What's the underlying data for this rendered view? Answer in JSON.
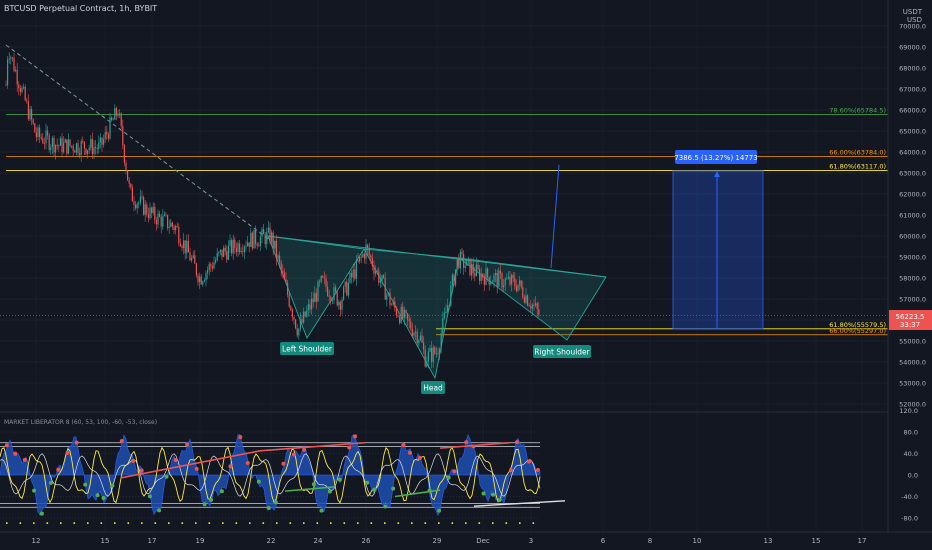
{
  "header": {
    "title": "BTCUSD Perpetual Contract, 1h, BYBIT"
  },
  "indicator": {
    "title": "MARKET LIBERATOR 8 (60, 53, 100, -60, -53, close)"
  },
  "axis": {
    "currency": "USDT",
    "currency_unit": "USD",
    "price_ticks": [
      "70000.0",
      "69000.0",
      "68000.0",
      "67000.0",
      "66000.0",
      "65000.0",
      "64000.0",
      "63000.0",
      "62000.0",
      "61000.0",
      "60000.0",
      "59000.0",
      "58000.0",
      "57000.0",
      "56000.0",
      "55000.0",
      "54000.0",
      "53000.0",
      "52000.0"
    ],
    "osc_ticks": [
      "120.0",
      "80.0",
      "40.0",
      "0.0",
      "-40.0",
      "-80.0"
    ],
    "time_ticks": [
      "12",
      "15",
      "17",
      "19",
      "22",
      "24",
      "26",
      "29",
      "Dec",
      "3",
      "6",
      "8",
      "10",
      "13",
      "15",
      "17"
    ]
  },
  "price_labels": {
    "current": "56223.5",
    "countdown": "33:37"
  },
  "fib_levels": [
    {
      "label": "78.60%(65784.5)",
      "price": 65784.5,
      "color": "#4caf50"
    },
    {
      "label": "66.00%(63784.0)",
      "price": 63784.0,
      "color": "#ff9800"
    },
    {
      "label": "61.80%(63117.0)",
      "price": 63117.0,
      "color": "#ffeb3b"
    },
    {
      "label": "61.80%(55579.5)",
      "price": 55579.5,
      "color": "#ffeb3b"
    },
    {
      "label": "66.00%(55297.0)",
      "price": 55297.0,
      "color": "#ff9800"
    }
  ],
  "pattern_labels": {
    "left": "Left Shoulder",
    "head": "Head",
    "right": "Right Shoulder"
  },
  "measure": {
    "label": "7386.5 (13.27%) 14773"
  },
  "colors": {
    "background": "#131722",
    "up": "#26a69a",
    "down": "#ef5350",
    "measure": "#2962ff",
    "pattern": "#26a69a"
  },
  "chart_data": {
    "type": "candlestick",
    "symbol": "BTCUSD Perpetual Contract",
    "interval": "1h",
    "exchange": "BYBIT",
    "y_range": [
      52000,
      70000
    ],
    "current_price": 56223.5,
    "path_x": [
      "Nov 11",
      "Nov 11",
      "Nov 12",
      "Nov 13",
      "Nov 14",
      "Nov 15",
      "Nov 15",
      "Nov 16",
      "Nov 17",
      "Nov 18",
      "Nov 19",
      "Nov 20",
      "Nov 21",
      "Nov 22",
      "Nov 23",
      "Nov 23",
      "Nov 24",
      "Nov 25",
      "Nov 26",
      "Nov 27",
      "Nov 28",
      "Nov 28",
      "Nov 29",
      "Nov 29",
      "Nov 30",
      "Dec 1",
      "Dec 2",
      "Dec 2"
    ],
    "path_y": [
      67200,
      69000,
      64800,
      64300,
      64300,
      64200,
      66000,
      62000,
      61000,
      60400,
      58000,
      59200,
      59800,
      60000,
      55500,
      57800,
      57400,
      56900,
      59400,
      56700,
      54200,
      55200,
      54500,
      58900,
      58200,
      57900,
      57700,
      56200
    ]
  }
}
